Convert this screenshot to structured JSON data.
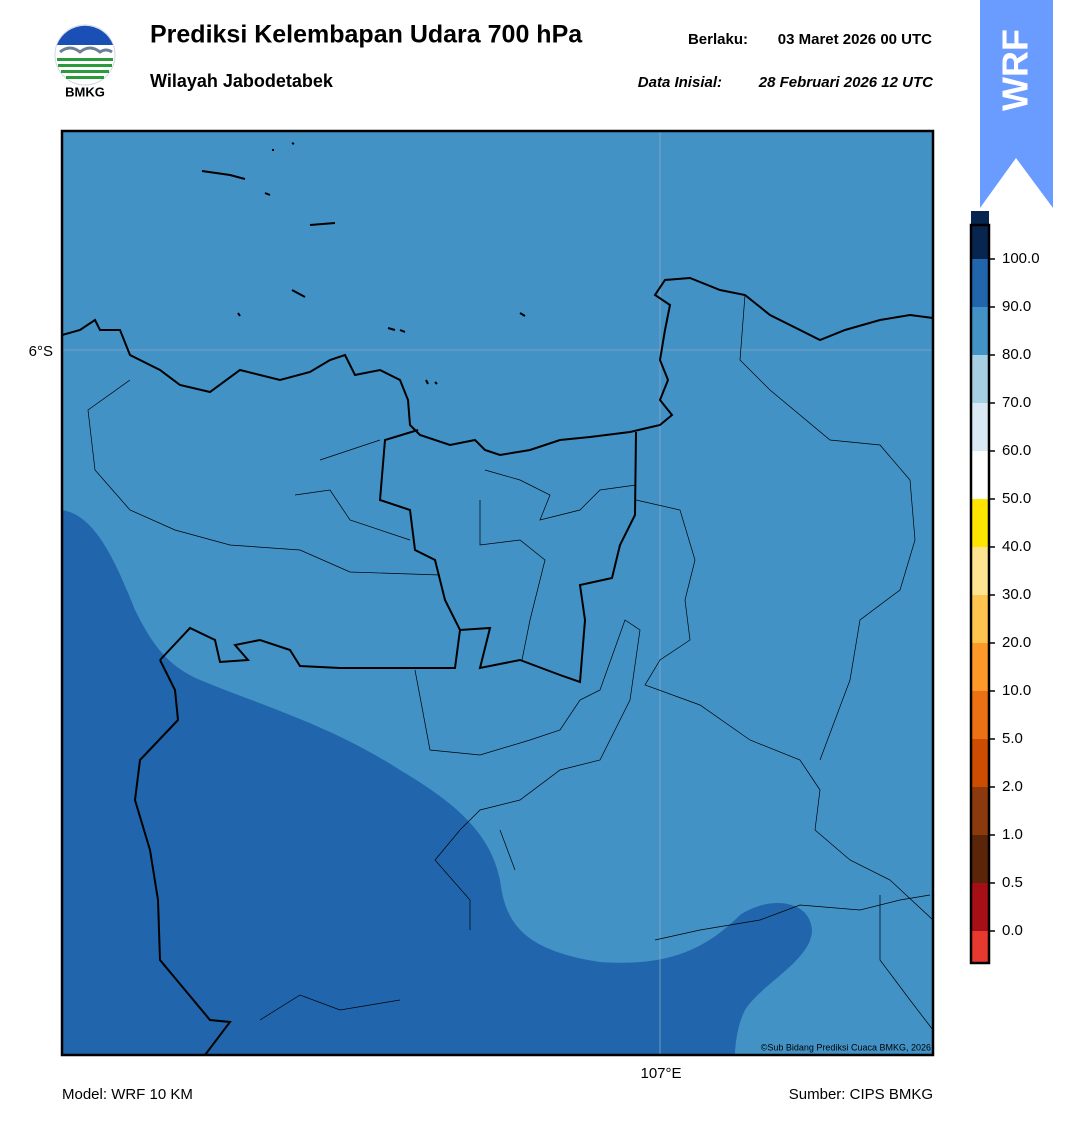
{
  "header": {
    "logo_text": "BMKG",
    "title": "Prediksi Kelembapan Udara 700 hPa",
    "subtitle": "Wilayah Jabodetabek",
    "valid_label": "Berlaku:",
    "valid_time": "03 Maret 2026 00 UTC",
    "init_label": "Data Inisial:",
    "init_time": "28 Februari 2026 12 UTC",
    "badge": "WRF"
  },
  "map": {
    "lat_label": "6°S",
    "lon_label": "107°E",
    "credit": "©Sub Bidang Prediksi Cuaca BMKG, 2026"
  },
  "colorbar": {
    "ticks": [
      {
        "value": 0,
        "label": "0.0"
      },
      {
        "value": 0.5,
        "label": "0.5"
      },
      {
        "value": 1,
        "label": "1.0"
      },
      {
        "value": 2,
        "label": "2.0"
      },
      {
        "value": 5,
        "label": "5.0"
      },
      {
        "value": 10,
        "label": "10.0"
      },
      {
        "value": 20,
        "label": "20.0"
      },
      {
        "value": 30,
        "label": "30.0"
      },
      {
        "value": 40,
        "label": "40.0"
      },
      {
        "value": 50,
        "label": "50.0"
      },
      {
        "value": 60,
        "label": "60.0"
      },
      {
        "value": 70,
        "label": "70.0"
      },
      {
        "value": 80,
        "label": "80.0"
      },
      {
        "value": 90,
        "label": "90.0"
      },
      {
        "value": 100,
        "label": "100.0"
      }
    ],
    "colors": [
      "#e8392e",
      "#a50f15",
      "#5a2508",
      "#8b3a0e",
      "#cc4c02",
      "#ec7014",
      "#fe9929",
      "#fec44f",
      "#fee391",
      "#ffe500",
      "#ffffff",
      "#d9e9f3",
      "#a6cfe3",
      "#4292c6",
      "#2166ac",
      "#08254f",
      "#2d004b"
    ]
  },
  "footer": {
    "model": "Model: WRF 10 KM",
    "source": "Sumber: CIPS BMKG"
  }
}
